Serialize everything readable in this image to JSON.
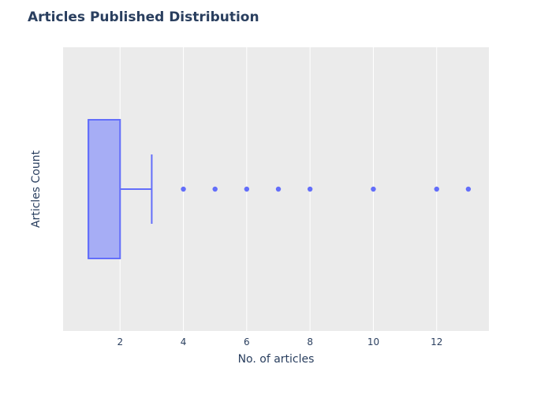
{
  "chart_data": {
    "type": "box",
    "title": "Articles Published Distribution",
    "xlabel": "No. of articles",
    "ylabel": "Articles Count",
    "orientation": "horizontal",
    "xlim": [
      0.2,
      13.65
    ],
    "x_ticks": [
      2,
      4,
      6,
      8,
      10,
      12
    ],
    "grid": true,
    "box": {
      "lower_fence": 1,
      "q1": 1,
      "median": 1,
      "q3": 2,
      "upper_fence": 3
    },
    "outliers": [
      4,
      5,
      6,
      7,
      8,
      10,
      12,
      13
    ],
    "colors": {
      "box_fill": "#a6adf5",
      "box_line": "#636efa",
      "plot_bg": "#ebebeb",
      "grid": "#ffffff",
      "text": "#2a3f5f"
    }
  }
}
